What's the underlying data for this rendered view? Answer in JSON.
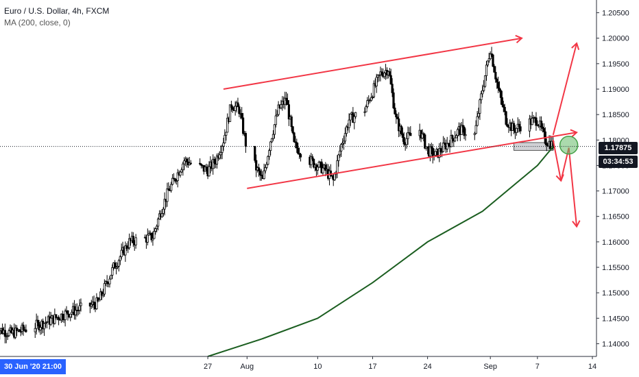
{
  "legend": {
    "title": "Euro / U.S. Dollar, 4h, FXCM",
    "indicator": "MA (200, close, 0)"
  },
  "price_axis": {
    "ticks": [
      "1.20500",
      "1.20000",
      "1.19500",
      "1.19000",
      "1.18500",
      "1.18000",
      "1.17500",
      "1.17000",
      "1.16500",
      "1.16000",
      "1.15500",
      "1.15000",
      "1.14500",
      "1.14000"
    ],
    "current_price": "1.17875",
    "countdown": "03:34:53"
  },
  "time_axis": {
    "ticks": [
      "27",
      "Aug",
      "10",
      "17",
      "24",
      "Sep",
      "7",
      "14"
    ],
    "crosshair_label": "30 Jun '20  21:00"
  },
  "colors": {
    "up": "#26a69a",
    "candle": "#000000",
    "ma": "#1b5e20",
    "annotation": "#f23645",
    "target_circle": "#66bb6a"
  },
  "chart_data": {
    "type": "candlestick",
    "symbol": "EURUSD",
    "timeframe": "4h",
    "source": "FXCM",
    "x_range": [
      "2020-06-30",
      "2020-09-14"
    ],
    "ylim": [
      1.1375,
      1.2075
    ],
    "grid": false,
    "close_path": [
      [
        "2020-06-30",
        1.143
      ],
      [
        "2020-07-02",
        1.142
      ],
      [
        "2020-07-06",
        1.144
      ],
      [
        "2020-07-09",
        1.146
      ],
      [
        "2020-07-13",
        1.148
      ],
      [
        "2020-07-15",
        1.155
      ],
      [
        "2020-07-17",
        1.16
      ],
      [
        "2020-07-20",
        1.161
      ],
      [
        "2020-07-21",
        1.166
      ],
      [
        "2020-07-22",
        1.17
      ],
      [
        "2020-07-23",
        1.173
      ],
      [
        "2020-07-24",
        1.176
      ],
      [
        "2020-07-27",
        1.174
      ],
      [
        "2020-07-28",
        1.176
      ],
      [
        "2020-07-29",
        1.18
      ],
      [
        "2020-07-30",
        1.187
      ],
      [
        "2020-07-31",
        1.186
      ],
      [
        "2020-08-01",
        1.178
      ],
      [
        "2020-08-03",
        1.172
      ],
      [
        "2020-08-04",
        1.18
      ],
      [
        "2020-08-05",
        1.186
      ],
      [
        "2020-08-06",
        1.188
      ],
      [
        "2020-08-07",
        1.179
      ],
      [
        "2020-08-09",
        1.176
      ],
      [
        "2020-08-10",
        1.175
      ],
      [
        "2020-08-11",
        1.174
      ],
      [
        "2020-08-12",
        1.172
      ],
      [
        "2020-08-13",
        1.179
      ],
      [
        "2020-08-14",
        1.184
      ],
      [
        "2020-08-16",
        1.186
      ],
      [
        "2020-08-18",
        1.193
      ],
      [
        "2020-08-19",
        1.194
      ],
      [
        "2020-08-20",
        1.184
      ],
      [
        "2020-08-21",
        1.18
      ],
      [
        "2020-08-23",
        1.182
      ],
      [
        "2020-08-24",
        1.178
      ],
      [
        "2020-08-25",
        1.177
      ],
      [
        "2020-08-27",
        1.18
      ],
      [
        "2020-08-28",
        1.182
      ],
      [
        "2020-08-30",
        1.181
      ],
      [
        "2020-08-31",
        1.19
      ],
      [
        "2020-09-01",
        1.198
      ],
      [
        "2020-09-02",
        1.19
      ],
      [
        "2020-09-03",
        1.184
      ],
      [
        "2020-09-04",
        1.182
      ],
      [
        "2020-09-05",
        1.183
      ],
      [
        "2020-09-07",
        1.184
      ],
      [
        "2020-09-08",
        1.18
      ],
      [
        "2020-09-09",
        1.179
      ]
    ],
    "series": [
      {
        "name": "MA (200, close, 0)",
        "type": "line",
        "points": [
          [
            "2020-07-27",
            1.1375
          ],
          [
            "2020-08-03",
            1.141
          ],
          [
            "2020-08-10",
            1.145
          ],
          [
            "2020-08-17",
            1.152
          ],
          [
            "2020-08-24",
            1.16
          ],
          [
            "2020-08-31",
            1.166
          ],
          [
            "2020-09-07",
            1.175
          ],
          [
            "2020-09-09",
            1.1787
          ]
        ]
      }
    ],
    "annotations": {
      "channel_upper": [
        [
          "2020-07-29",
          1.19
        ],
        [
          "2020-09-05",
          1.2
        ]
      ],
      "channel_lower": [
        [
          "2020-08-01",
          1.1705
        ],
        [
          "2020-09-12",
          1.1815
        ]
      ],
      "arrow_up": [
        [
          "2020-09-09",
          1.181
        ],
        [
          "2020-09-12",
          1.199
        ]
      ],
      "arrow_down": [
        [
          "2020-09-09",
          1.18
        ],
        [
          "2020-09-10",
          1.172
        ]
      ],
      "arrow_up_small": [
        [
          "2020-09-10",
          1.172
        ],
        [
          "2020-09-11",
          1.1785
        ]
      ],
      "arrow_down_long": [
        [
          "2020-09-11",
          1.1785
        ],
        [
          "2020-09-12",
          1.163
        ]
      ],
      "box": [
        [
          "2020-09-04",
          1.1795
        ],
        [
          "2020-09-09",
          1.1785
        ]
      ],
      "circle": [
        "2020-09-11",
        1.179
      ]
    }
  }
}
